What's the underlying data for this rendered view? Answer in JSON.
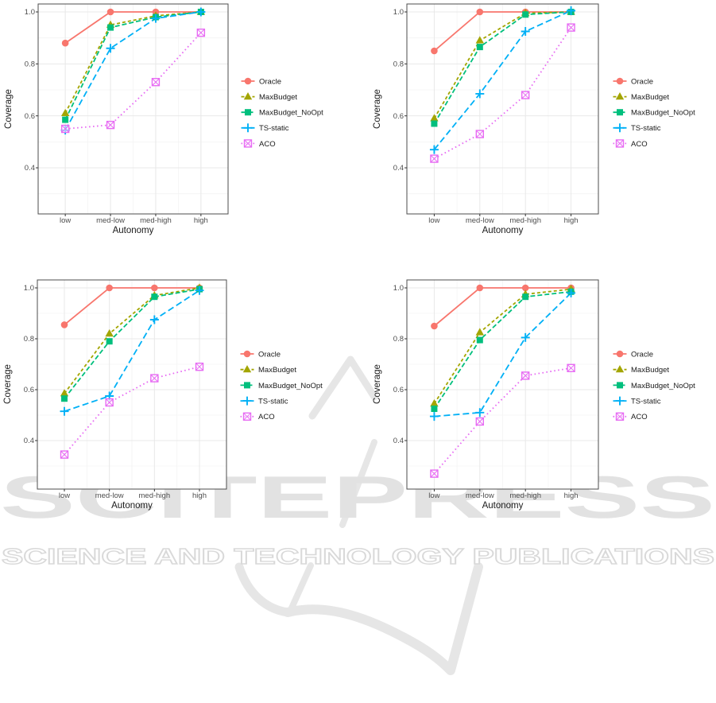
{
  "figure": {
    "ylabel": "Coverage",
    "xlabel": "Autonomy",
    "background": "#ffffff"
  },
  "watermark": {
    "title": "SCITEPRESS",
    "subtitle": "SCIENCE AND TECHNOLOGY PUBLICATIONS",
    "color": "#e2e2e2"
  },
  "legend": {
    "entries": [
      "Oracle",
      "MaxBudget",
      "MaxBudget_NoOpt",
      "TS-static",
      "ACO"
    ]
  },
  "palette": {
    "oracle": "#F8766D",
    "maxbudget": "#A3A500",
    "maxbudget_noopt": "#00BF7D",
    "ts_static": "#00B0F6",
    "aco": "#E76BF3"
  },
  "chart_data": [
    {
      "type": "line",
      "position": "top-left",
      "xlabel": "Autonomy",
      "ylabel": "Coverage",
      "categories": [
        "low",
        "med-low",
        "med-high",
        "high"
      ],
      "yticks": [
        0.4,
        0.6,
        0.8,
        1.0
      ],
      "ytick_labels": [
        "0.4",
        "0.6",
        "0.8",
        "1.0"
      ],
      "ylim": [
        0.22,
        1.03
      ],
      "grid": true,
      "legend_position": "right",
      "series": [
        {
          "name": "Oracle",
          "color": "#F8766D",
          "marker": "circle",
          "linetype": "solid",
          "values": [
            0.88,
            1.0,
            1.0,
            1.0
          ]
        },
        {
          "name": "MaxBudget",
          "color": "#A3A500",
          "marker": "triangle",
          "linetype": "dashed-short",
          "values": [
            0.61,
            0.95,
            0.985,
            1.0
          ]
        },
        {
          "name": "MaxBudget_NoOpt",
          "color": "#00BF7D",
          "marker": "square",
          "linetype": "dashed",
          "values": [
            0.585,
            0.94,
            0.98,
            1.0
          ]
        },
        {
          "name": "TS-static",
          "color": "#00B0F6",
          "marker": "plus",
          "linetype": "dashed-long",
          "values": [
            0.545,
            0.86,
            0.975,
            1.0
          ]
        },
        {
          "name": "ACO",
          "color": "#E76BF3",
          "marker": "square-x",
          "linetype": "dotted",
          "values": [
            0.55,
            0.565,
            0.73,
            0.92
          ]
        }
      ]
    },
    {
      "type": "line",
      "position": "top-right",
      "xlabel": "Autonomy",
      "ylabel": "Coverage",
      "categories": [
        "low",
        "med-low",
        "med-high",
        "high"
      ],
      "yticks": [
        0.4,
        0.6,
        0.8,
        1.0
      ],
      "ytick_labels": [
        "0.4",
        "0.6",
        "0.8",
        "1.0"
      ],
      "ylim": [
        0.22,
        1.03
      ],
      "grid": true,
      "legend_position": "right",
      "series": [
        {
          "name": "Oracle",
          "color": "#F8766D",
          "marker": "circle",
          "linetype": "solid",
          "values": [
            0.85,
            1.0,
            1.0,
            1.0
          ]
        },
        {
          "name": "MaxBudget",
          "color": "#A3A500",
          "marker": "triangle",
          "linetype": "dashed-short",
          "values": [
            0.59,
            0.89,
            0.995,
            1.0
          ]
        },
        {
          "name": "MaxBudget_NoOpt",
          "color": "#00BF7D",
          "marker": "square",
          "linetype": "dashed",
          "values": [
            0.57,
            0.865,
            0.99,
            1.0
          ]
        },
        {
          "name": "TS-static",
          "color": "#00B0F6",
          "marker": "plus",
          "linetype": "dashed-long",
          "values": [
            0.47,
            0.685,
            0.925,
            1.005
          ]
        },
        {
          "name": "ACO",
          "color": "#E76BF3",
          "marker": "square-x",
          "linetype": "dotted",
          "values": [
            0.435,
            0.53,
            0.68,
            0.94
          ]
        }
      ]
    },
    {
      "type": "line",
      "position": "bottom-left",
      "xlabel": "Autonomy",
      "ylabel": "Coverage",
      "categories": [
        "low",
        "med-low",
        "med-high",
        "high"
      ],
      "yticks": [
        0.4,
        0.6,
        0.8,
        1.0
      ],
      "ytick_labels": [
        "0.4",
        "0.6",
        "0.8",
        "1.0"
      ],
      "ylim": [
        0.21,
        1.03
      ],
      "grid": true,
      "legend_position": "right",
      "series": [
        {
          "name": "Oracle",
          "color": "#F8766D",
          "marker": "circle",
          "linetype": "solid",
          "values": [
            0.855,
            1.0,
            1.0,
            1.0
          ]
        },
        {
          "name": "MaxBudget",
          "color": "#A3A500",
          "marker": "triangle",
          "linetype": "dashed-short",
          "values": [
            0.585,
            0.82,
            0.97,
            1.0
          ]
        },
        {
          "name": "MaxBudget_NoOpt",
          "color": "#00BF7D",
          "marker": "square",
          "linetype": "dashed",
          "values": [
            0.565,
            0.79,
            0.965,
            0.995
          ]
        },
        {
          "name": "TS-static",
          "color": "#00B0F6",
          "marker": "plus",
          "linetype": "dashed-long",
          "values": [
            0.515,
            0.575,
            0.875,
            0.99
          ]
        },
        {
          "name": "ACO",
          "color": "#E76BF3",
          "marker": "square-x",
          "linetype": "dotted",
          "values": [
            0.345,
            0.55,
            0.645,
            0.69
          ]
        }
      ]
    },
    {
      "type": "line",
      "position": "bottom-right",
      "xlabel": "Autonomy",
      "ylabel": "Coverage",
      "categories": [
        "low",
        "med-low",
        "med-high",
        "high"
      ],
      "yticks": [
        0.4,
        0.6,
        0.8,
        1.0
      ],
      "ytick_labels": [
        "0.4",
        "0.6",
        "0.8",
        "1.0"
      ],
      "ylim": [
        0.21,
        1.03
      ],
      "grid": true,
      "legend_position": "right",
      "series": [
        {
          "name": "Oracle",
          "color": "#F8766D",
          "marker": "circle",
          "linetype": "solid",
          "values": [
            0.85,
            1.0,
            1.0,
            1.0
          ]
        },
        {
          "name": "MaxBudget",
          "color": "#A3A500",
          "marker": "triangle",
          "linetype": "dashed-short",
          "values": [
            0.545,
            0.825,
            0.975,
            0.995
          ]
        },
        {
          "name": "MaxBudget_NoOpt",
          "color": "#00BF7D",
          "marker": "square",
          "linetype": "dashed",
          "values": [
            0.525,
            0.795,
            0.965,
            0.985
          ]
        },
        {
          "name": "TS-static",
          "color": "#00B0F6",
          "marker": "plus",
          "linetype": "dashed-long",
          "values": [
            0.495,
            0.51,
            0.805,
            0.98
          ]
        },
        {
          "name": "ACO",
          "color": "#E76BF3",
          "marker": "square-x",
          "linetype": "dotted",
          "values": [
            0.27,
            0.475,
            0.655,
            0.685
          ]
        }
      ]
    }
  ]
}
